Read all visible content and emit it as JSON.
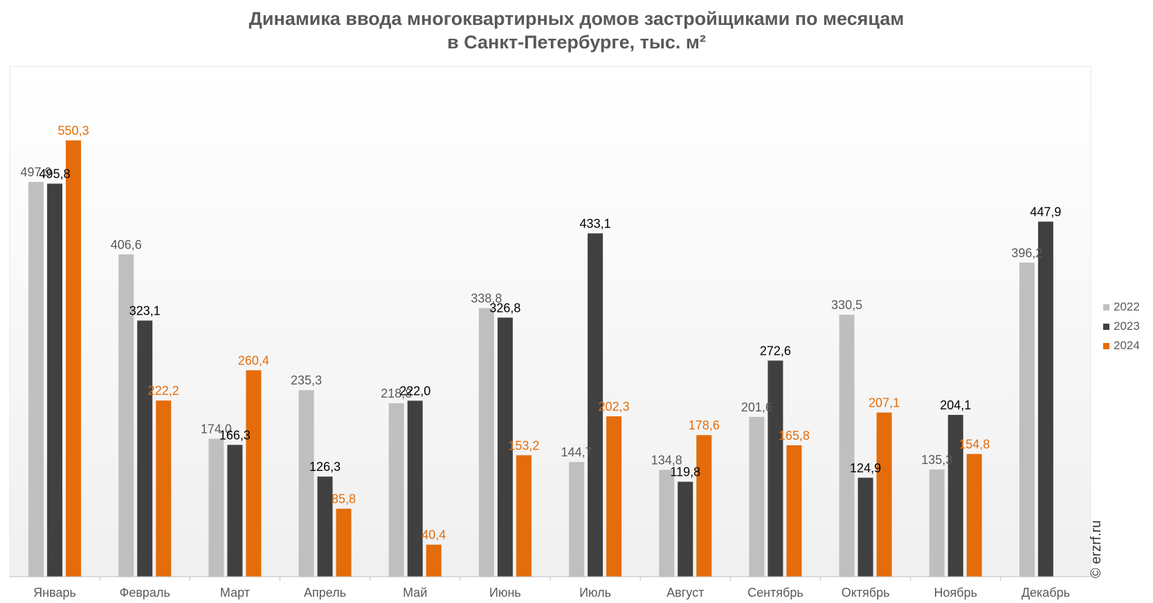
{
  "chart_data": {
    "type": "bar",
    "title": "Динамика ввода многоквартирных домов застройщиками по месяцам",
    "subtitle": "в Санкт-Петербурге, тыс. м²",
    "xlabel": "",
    "ylabel": "",
    "ylim": [
      0,
      580
    ],
    "grid": false,
    "legend_position": "right",
    "categories": [
      "Январь",
      "Февраль",
      "Март",
      "Апрель",
      "Май",
      "Июнь",
      "Июль",
      "Август",
      "Сентябрь",
      "Октябрь",
      "Ноябрь",
      "Декабрь"
    ],
    "series": [
      {
        "name": "2022",
        "color": "#bfbfbf",
        "label_color": "#595959",
        "values": [
          497.9,
          406.6,
          174.0,
          235.3,
          218.8,
          338.8,
          144.7,
          134.8,
          201.6,
          330.5,
          135.3,
          396.2
        ],
        "labels": [
          "497,9",
          "406,6",
          "174,0",
          "235,3",
          "218,8",
          "338,8",
          "144,7",
          "134,8",
          "201,6",
          "330,5",
          "135,3",
          "396,2"
        ]
      },
      {
        "name": "2023",
        "color": "#404040",
        "label_color": "#000000",
        "values": [
          495.8,
          323.1,
          166.3,
          126.3,
          222.0,
          326.8,
          433.1,
          119.8,
          272.6,
          124.9,
          204.1,
          447.9
        ],
        "labels": [
          "495,8",
          "323,1",
          "166,3",
          "126,3",
          "222,0",
          "326,8",
          "433,1",
          "119,8",
          "272,6",
          "124,9",
          "204,1",
          "447,9"
        ]
      },
      {
        "name": "2024",
        "color": "#e46c0a",
        "label_color": "#e46c0a",
        "values": [
          550.3,
          222.2,
          260.4,
          85.8,
          40.4,
          153.2,
          202.3,
          178.6,
          165.8,
          207.1,
          154.8,
          null
        ],
        "labels": [
          "550,3",
          "222,2",
          "260,4",
          "85,8",
          "40,4",
          "153,2",
          "202,3",
          "178,6",
          "165,8",
          "207,1",
          "154,8",
          null
        ]
      }
    ]
  },
  "watermark": "© erzrf.ru"
}
